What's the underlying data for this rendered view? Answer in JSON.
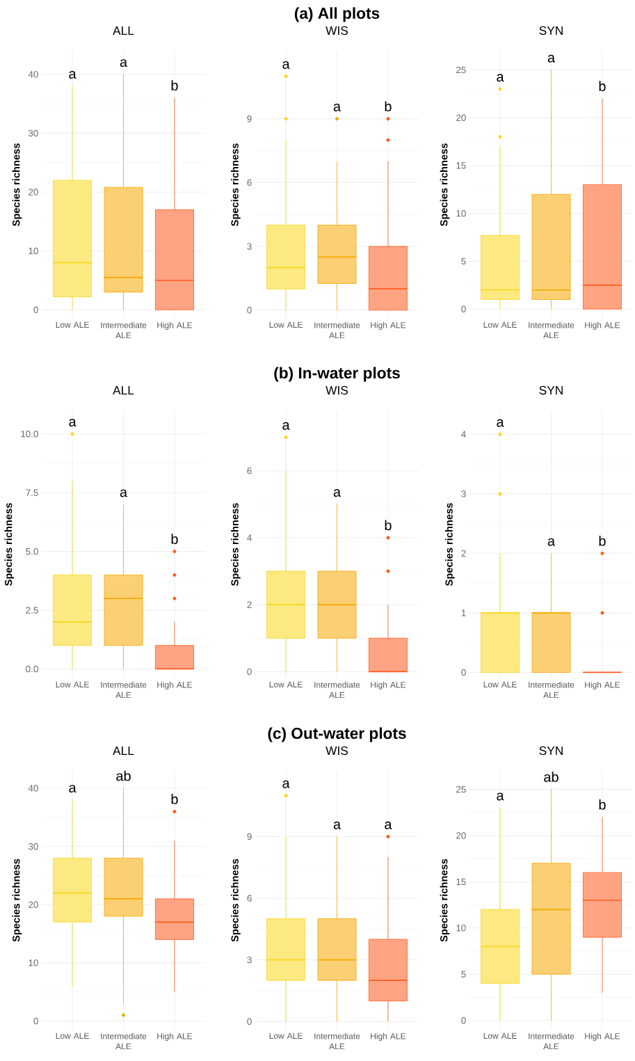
{
  "chart_data": [
    {
      "type": "box",
      "subtitle": "ALL",
      "ylabel": "Species richness",
      "categories": [
        "Low ALE",
        "Intermediate ALE",
        "High ALE"
      ],
      "colors": [
        "#f9d71c",
        "#f7a800",
        "#ff5a1e"
      ],
      "boxes": [
        {
          "low": 0,
          "q1": 2.2,
          "median": 8,
          "q3": 22,
          "high": 38
        },
        {
          "low": 0,
          "q1": 3,
          "median": 5.5,
          "q3": 20.8,
          "high": 40
        },
        {
          "low": 0,
          "q1": 0,
          "median": 5,
          "q3": 17,
          "high": 36
        }
      ],
      "ylim": [
        -1.5,
        44
      ],
      "yticks": [
        0,
        10,
        20,
        30,
        40
      ],
      "grid": true,
      "annotations": [
        "a",
        "a",
        "b"
      ]
    },
    {
      "type": "box",
      "title": "(a) All plots",
      "subtitle": "WIS",
      "ylabel": "Species richness",
      "categories": [
        "Low ALE",
        "Intermediate ALE",
        "High ALE"
      ],
      "colors": [
        "#f9d71c",
        "#f7a800",
        "#ff5a1e"
      ],
      "boxes": [
        {
          "low": 0,
          "q1": 1,
          "median": 2,
          "q3": 4,
          "high": 8,
          "outliers": [
            9,
            11
          ]
        },
        {
          "low": 0,
          "q1": 1.25,
          "median": 2.5,
          "q3": 4,
          "high": 7,
          "outliers": [
            9
          ]
        },
        {
          "low": 0,
          "q1": 0,
          "median": 1,
          "q3": 3,
          "high": 7,
          "outliers": [
            8,
            9
          ]
        }
      ],
      "ylim": [
        -0.4,
        12.2
      ],
      "yticks": [
        0,
        3,
        6,
        9
      ],
      "grid": true,
      "annotations": [
        "a",
        "a",
        "b"
      ]
    },
    {
      "type": "box",
      "subtitle": "SYN",
      "ylabel": "Species richness",
      "categories": [
        "Low ALE",
        "Intermediate ALE",
        "High ALE"
      ],
      "colors": [
        "#f9d71c",
        "#f7a800",
        "#ff5a1e"
      ],
      "boxes": [
        {
          "low": 0,
          "q1": 1,
          "median": 2,
          "q3": 7.7,
          "high": 17,
          "outliers": [
            18,
            23
          ]
        },
        {
          "low": 0,
          "q1": 1,
          "median": 2,
          "q3": 12,
          "high": 25
        },
        {
          "low": 0,
          "q1": 0,
          "median": 2.5,
          "q3": 13,
          "high": 22
        }
      ],
      "ylim": [
        -1,
        27
      ],
      "yticks": [
        0,
        5,
        10,
        15,
        20,
        25
      ],
      "grid": true,
      "annotations": [
        "a",
        "a",
        "b"
      ]
    },
    {
      "type": "box",
      "subtitle": "ALL",
      "ylabel": "Species richness",
      "categories": [
        "Low ALE",
        "Intermediate ALE",
        "High ALE"
      ],
      "colors": [
        "#f9d71c",
        "#f7a800",
        "#ff5a1e"
      ],
      "boxes": [
        {
          "low": 0,
          "q1": 1,
          "median": 2,
          "q3": 4,
          "high": 8,
          "outliers": [
            10
          ]
        },
        {
          "low": 0,
          "q1": 1,
          "median": 3,
          "q3": 4,
          "high": 7
        },
        {
          "low": 0,
          "q1": 0,
          "median": 0,
          "q3": 1,
          "high": 2,
          "outliers": [
            3,
            4,
            5
          ]
        }
      ],
      "ylim": [
        -0.4,
        11
      ],
      "yticks": [
        {
          "value": 0,
          "label": "0.0"
        },
        {
          "value": 2.5,
          "label": "2.5"
        },
        {
          "value": 5,
          "label": "5.0"
        },
        {
          "value": 7.5,
          "label": "7.5"
        },
        {
          "value": 10,
          "label": "10.0"
        }
      ],
      "grid": true,
      "annotations": [
        "a",
        "a",
        "b"
      ]
    },
    {
      "type": "box",
      "title": "(b) In-water plots",
      "subtitle": "WIS",
      "ylabel": "Species richness",
      "categories": [
        "Low ALE",
        "Intermediate ALE",
        "High ALE"
      ],
      "colors": [
        "#f9d71c",
        "#f7a800",
        "#ff5a1e"
      ],
      "boxes": [
        {
          "low": 0,
          "q1": 1,
          "median": 2,
          "q3": 3,
          "high": 6,
          "outliers": [
            7
          ]
        },
        {
          "low": 0,
          "q1": 1,
          "median": 2,
          "q3": 3,
          "high": 5
        },
        {
          "low": 0,
          "q1": 0,
          "median": 0,
          "q3": 1,
          "high": 2,
          "outliers": [
            3,
            4
          ]
        }
      ],
      "ylim": [
        -0.2,
        7.8
      ],
      "yticks": [
        0,
        2,
        4,
        6
      ],
      "grid": true,
      "annotations": [
        "a",
        "a",
        "b"
      ]
    },
    {
      "type": "box",
      "subtitle": "SYN",
      "ylabel": "Species richness",
      "categories": [
        "Low ALE",
        "Intermediate ALE",
        "High ALE"
      ],
      "colors": [
        "#f9d71c",
        "#f7a800",
        "#ff5a1e"
      ],
      "boxes": [
        {
          "low": 0,
          "q1": 0,
          "median": 1,
          "q3": 1,
          "high": 2,
          "outliers": [
            3,
            4
          ]
        },
        {
          "low": 0,
          "q1": 0,
          "median": 1,
          "q3": 1,
          "high": 2
        },
        {
          "low": 0,
          "q1": 0,
          "median": 0,
          "q3": 0,
          "high": 0,
          "outliers": [
            1,
            2
          ]
        }
      ],
      "ylim": [
        -0.1,
        4.4
      ],
      "yticks": [
        0,
        1,
        2,
        3,
        4
      ],
      "grid": true,
      "annotations": [
        "a",
        "a",
        "b"
      ]
    },
    {
      "type": "box",
      "subtitle": "ALL",
      "ylabel": "Species richness",
      "categories": [
        "Low ALE",
        "Intermediate ALE",
        "High ALE"
      ],
      "colors": [
        "#f9d71c",
        "#f7a800",
        "#ff5a1e"
      ],
      "boxes": [
        {
          "low": 6,
          "q1": 17,
          "median": 22,
          "q3": 28,
          "high": 38
        },
        {
          "low": 3,
          "q1": 18,
          "median": 21,
          "q3": 28,
          "high": 40,
          "outliers": [
            1
          ]
        },
        {
          "low": 5,
          "q1": 14,
          "median": 17,
          "q3": 21,
          "high": 31,
          "outliers": [
            36
          ]
        }
      ],
      "ylim": [
        -1.5,
        43
      ],
      "yticks": [
        0,
        10,
        20,
        30,
        40
      ],
      "grid": true,
      "annotations": [
        "a",
        "ab",
        "b"
      ]
    },
    {
      "type": "box",
      "title": "(c) Out-water plots",
      "subtitle": "WIS",
      "ylabel": "Species richness",
      "categories": [
        "Low ALE",
        "Intermediate ALE",
        "High ALE"
      ],
      "colors": [
        "#f9d71c",
        "#f7a800",
        "#ff5a1e"
      ],
      "boxes": [
        {
          "low": 0,
          "q1": 2,
          "median": 3,
          "q3": 5,
          "high": 9,
          "outliers": [
            11
          ]
        },
        {
          "low": 0,
          "q1": 2,
          "median": 3,
          "q3": 5,
          "high": 9
        },
        {
          "low": 0,
          "q1": 1,
          "median": 2,
          "q3": 4,
          "high": 8,
          "outliers": [
            9
          ]
        }
      ],
      "ylim": [
        -0.4,
        12.2
      ],
      "yticks": [
        0,
        3,
        6,
        9
      ],
      "grid": true,
      "annotations": [
        "a",
        "a",
        "a"
      ]
    },
    {
      "type": "box",
      "subtitle": "SYN",
      "ylabel": "Species richness",
      "categories": [
        "Low ALE",
        "Intermediate ALE",
        "High ALE"
      ],
      "colors": [
        "#f9d71c",
        "#f7a800",
        "#ff5a1e"
      ],
      "boxes": [
        {
          "low": 0,
          "q1": 4,
          "median": 8,
          "q3": 12,
          "high": 23
        },
        {
          "low": 0,
          "q1": 5,
          "median": 12,
          "q3": 17,
          "high": 25
        },
        {
          "low": 3,
          "q1": 9,
          "median": 13,
          "q3": 16,
          "high": 22
        }
      ],
      "ylim": [
        -1,
        27
      ],
      "yticks": [
        0,
        5,
        10,
        15,
        20,
        25
      ],
      "grid": true,
      "annotations": [
        "a",
        "ab",
        "b"
      ]
    }
  ]
}
